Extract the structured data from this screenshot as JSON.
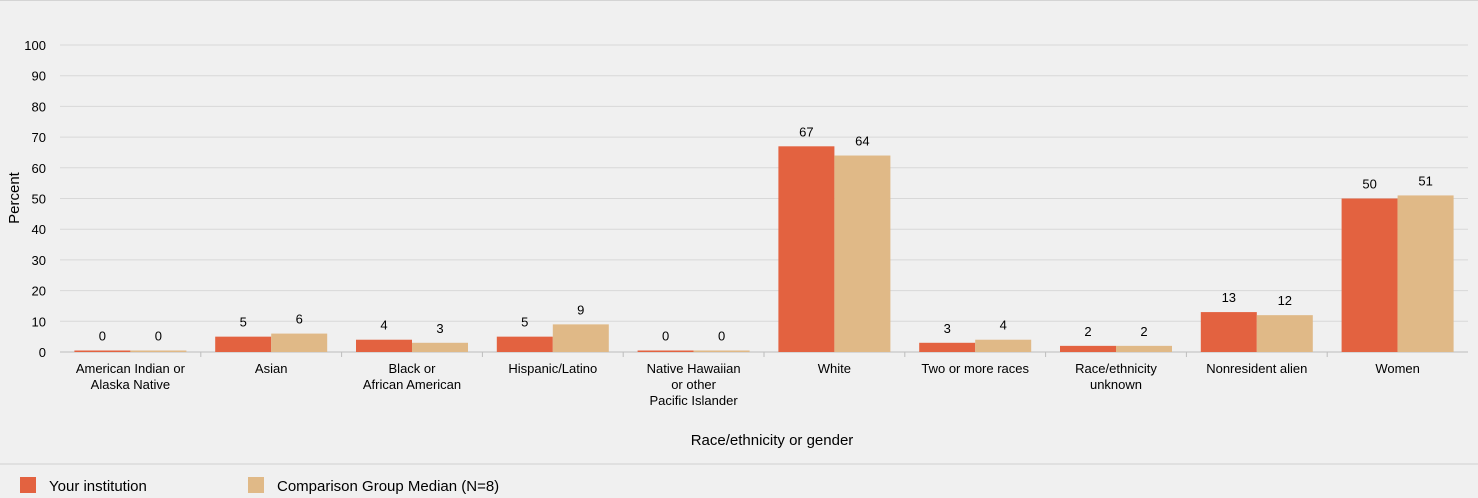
{
  "chart_data": {
    "type": "bar",
    "title": "",
    "xlabel": "Race/ethnicity or gender",
    "ylabel": "Percent",
    "ylim": [
      0,
      100
    ],
    "yticks": [
      0,
      10,
      20,
      30,
      40,
      50,
      60,
      70,
      80,
      90,
      100
    ],
    "grid": true,
    "legend_position": "bottom-left",
    "categories": [
      [
        "American Indian or",
        "Alaska Native"
      ],
      [
        "Asian"
      ],
      [
        "Black or",
        "African American"
      ],
      [
        "Hispanic/Latino"
      ],
      [
        "Native Hawaiian",
        "or other",
        "Pacific Islander"
      ],
      [
        "White"
      ],
      [
        "Two or more races"
      ],
      [
        "Race/ethnicity",
        "unknown"
      ],
      [
        "Nonresident alien"
      ],
      [
        "Women"
      ]
    ],
    "series": [
      {
        "name": "Your institution",
        "color": "#e36240",
        "values": [
          0,
          5,
          4,
          5,
          0,
          67,
          3,
          2,
          13,
          50
        ],
        "labels": [
          "0",
          "5",
          "4",
          "5",
          "0",
          "67",
          "3",
          "2",
          "13",
          "50"
        ]
      },
      {
        "name": "Comparison Group Median (N=8)",
        "color": "#e0b987",
        "values": [
          0,
          6,
          3,
          9,
          0,
          64,
          4,
          2,
          12,
          51
        ],
        "labels": [
          "0",
          "6",
          "3",
          "9",
          "0",
          "64",
          "4",
          "2",
          "12",
          "51"
        ]
      }
    ]
  }
}
